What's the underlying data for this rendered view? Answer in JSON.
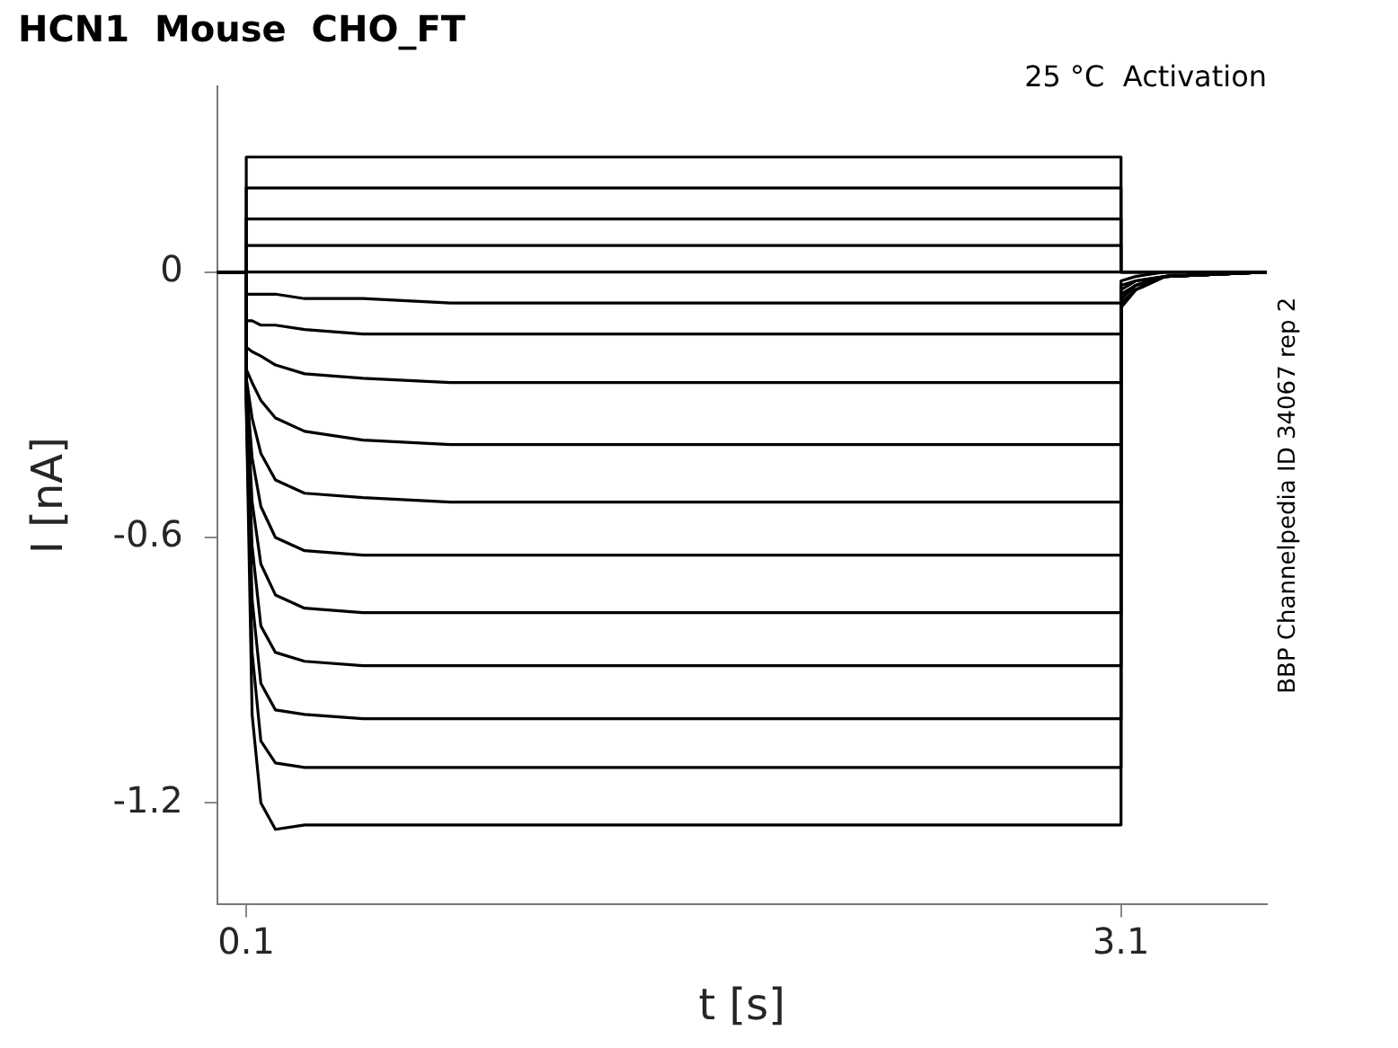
{
  "chart_data": {
    "type": "line",
    "title": "HCN1  Mouse  CHO_FT",
    "xlabel": "t [s]",
    "ylabel": "I [nA]",
    "annotations": [
      "25 °C  Activation",
      "BBP Channelpedia ID 34067 rep 2"
    ],
    "x": [
      0,
      0.1,
      0.1,
      0.12,
      0.15,
      0.2,
      0.3,
      0.5,
      0.8,
      1.2,
      2,
      3.1,
      3.1,
      3.15,
      3.25,
      3.6
    ],
    "series": [
      {
        "color": "#000000",
        "values": [
          0,
          0,
          0.26,
          0.26,
          0.26,
          0.26,
          0.26,
          0.26,
          0.26,
          0.26,
          0.26,
          0.26,
          0,
          0,
          0,
          0
        ]
      },
      {
        "color": "#000000",
        "values": [
          0,
          0,
          0.19,
          0.19,
          0.19,
          0.19,
          0.19,
          0.19,
          0.19,
          0.19,
          0.19,
          0.19,
          0,
          0,
          0,
          0
        ]
      },
      {
        "color": "#000000",
        "values": [
          0,
          0,
          0.12,
          0.12,
          0.12,
          0.12,
          0.12,
          0.12,
          0.12,
          0.12,
          0.12,
          0.12,
          0,
          0,
          0,
          0
        ]
      },
      {
        "color": "#000000",
        "values": [
          0,
          0,
          0.06,
          0.06,
          0.06,
          0.06,
          0.06,
          0.06,
          0.06,
          0.06,
          0.06,
          0.06,
          0,
          0,
          0,
          0
        ]
      },
      {
        "color": "#000000",
        "values": [
          0,
          0,
          0,
          0,
          0,
          0,
          0,
          0,
          0,
          0,
          0,
          0,
          0,
          0,
          0,
          0
        ]
      },
      {
        "color": "#000000",
        "values": [
          0,
          0,
          -0.05,
          -0.05,
          -0.05,
          -0.05,
          -0.06,
          -0.06,
          -0.07,
          -0.07,
          -0.07,
          -0.07,
          -0.02,
          -0.01,
          0,
          0
        ]
      },
      {
        "color": "#000000",
        "values": [
          0,
          0,
          -0.11,
          -0.11,
          -0.12,
          -0.12,
          -0.13,
          -0.14,
          -0.14,
          -0.14,
          -0.14,
          -0.14,
          -0.03,
          -0.02,
          -0.01,
          0
        ]
      },
      {
        "color": "#000000",
        "values": [
          0,
          0,
          -0.17,
          -0.18,
          -0.19,
          -0.21,
          -0.23,
          -0.24,
          -0.25,
          -0.25,
          -0.25,
          -0.25,
          -0.04,
          -0.02,
          -0.01,
          0
        ]
      },
      {
        "color": "#000000",
        "values": [
          0,
          0,
          -0.22,
          -0.25,
          -0.29,
          -0.33,
          -0.36,
          -0.38,
          -0.39,
          -0.39,
          -0.39,
          -0.39,
          -0.05,
          -0.03,
          -0.01,
          0
        ]
      },
      {
        "color": "#000000",
        "values": [
          0,
          0,
          -0.24,
          -0.33,
          -0.41,
          -0.47,
          -0.5,
          -0.51,
          -0.52,
          -0.52,
          -0.52,
          -0.52,
          -0.06,
          -0.03,
          -0.01,
          0
        ]
      },
      {
        "color": "#000000",
        "values": [
          0,
          0,
          -0.25,
          -0.42,
          -0.53,
          -0.6,
          -0.63,
          -0.64,
          -0.64,
          -0.64,
          -0.64,
          -0.64,
          -0.06,
          -0.03,
          -0.01,
          0
        ]
      },
      {
        "color": "#000000",
        "values": [
          0,
          0,
          -0.26,
          -0.52,
          -0.66,
          -0.73,
          -0.76,
          -0.77,
          -0.77,
          -0.77,
          -0.77,
          -0.77,
          -0.07,
          -0.04,
          -0.01,
          0
        ]
      },
      {
        "color": "#000000",
        "values": [
          0,
          0,
          -0.27,
          -0.62,
          -0.8,
          -0.86,
          -0.88,
          -0.89,
          -0.89,
          -0.89,
          -0.89,
          -0.89,
          -0.07,
          -0.04,
          -0.01,
          0
        ]
      },
      {
        "color": "#000000",
        "values": [
          0,
          0,
          -0.28,
          -0.74,
          -0.93,
          -0.99,
          -1,
          -1.01,
          -1.01,
          -1.01,
          -1.01,
          -1.01,
          -0.07,
          -0.04,
          -0.01,
          0
        ]
      },
      {
        "color": "#000000",
        "values": [
          0,
          0,
          -0.29,
          -0.86,
          -1.06,
          -1.11,
          -1.12,
          -1.12,
          -1.12,
          -1.12,
          -1.12,
          -1.12,
          -0.08,
          -0.04,
          -0.01,
          0
        ]
      },
      {
        "color": "#000000",
        "values": [
          0,
          0,
          -0.3,
          -1,
          -1.2,
          -1.26,
          -1.25,
          -1.25,
          -1.25,
          -1.25,
          -1.25,
          -1.25,
          -0.08,
          -0.04,
          -0.01,
          0
        ]
      }
    ],
    "xlim": [
      0,
      3.6
    ],
    "xticks": [
      0.1,
      3.1
    ],
    "ylim": [
      -1.43,
      0.42
    ],
    "yticks": [
      -1.2,
      -0.6,
      0
    ],
    "grid": false,
    "legend": false,
    "marker": "none",
    "line_style": "solid"
  }
}
